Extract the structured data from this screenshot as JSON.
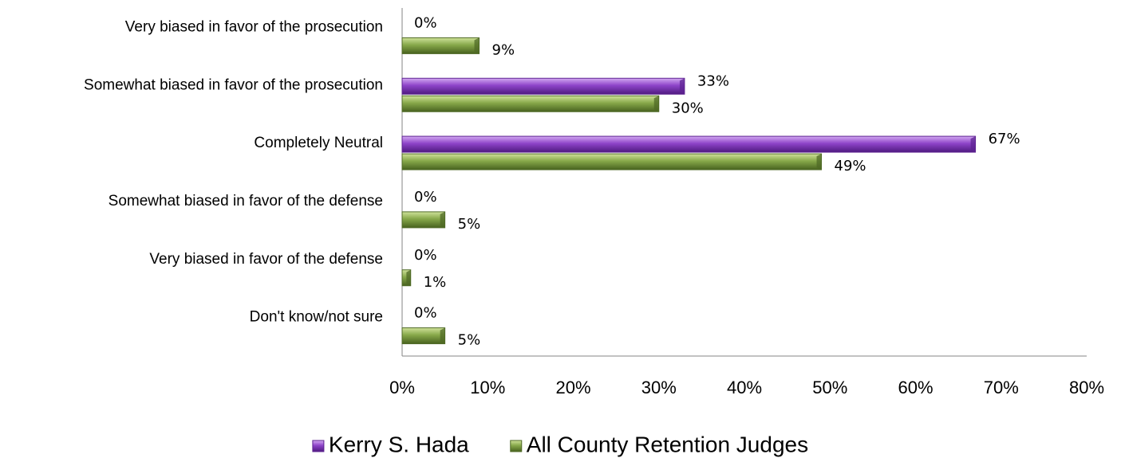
{
  "chart_data": {
    "type": "bar",
    "orientation": "horizontal",
    "categories": [
      "Very biased in favor of the prosecution",
      "Somewhat biased in favor of the prosecution",
      "Completely Neutral",
      "Somewhat biased in favor of the defense",
      "Very biased in favor of the defense",
      "Don't know/not sure"
    ],
    "series": [
      {
        "name": "Kerry S. Hada",
        "values": [
          0,
          33,
          67,
          0,
          0,
          0
        ],
        "labels": [
          "0%",
          "33%",
          "67%",
          "0%",
          "0%",
          "0%"
        ],
        "color": "#8e44c9",
        "color_light": "#c08ae8",
        "color_dark": "#5e2391"
      },
      {
        "name": "All County Retention Judges",
        "values": [
          9,
          30,
          49,
          5,
          1,
          5
        ],
        "labels": [
          "9%",
          "30%",
          "49%",
          "5%",
          "1%",
          "5%"
        ],
        "color": "#87a84a",
        "color_light": "#b9d27a",
        "color_dark": "#4f6a26"
      }
    ],
    "xlim": [
      0,
      80
    ],
    "xticks": [
      0,
      10,
      20,
      30,
      40,
      50,
      60,
      70,
      80
    ],
    "xtick_labels": [
      "0%",
      "10%",
      "20%",
      "30%",
      "40%",
      "50%",
      "60%",
      "70%",
      "80%"
    ],
    "grid": false,
    "legend_position": "bottom"
  }
}
